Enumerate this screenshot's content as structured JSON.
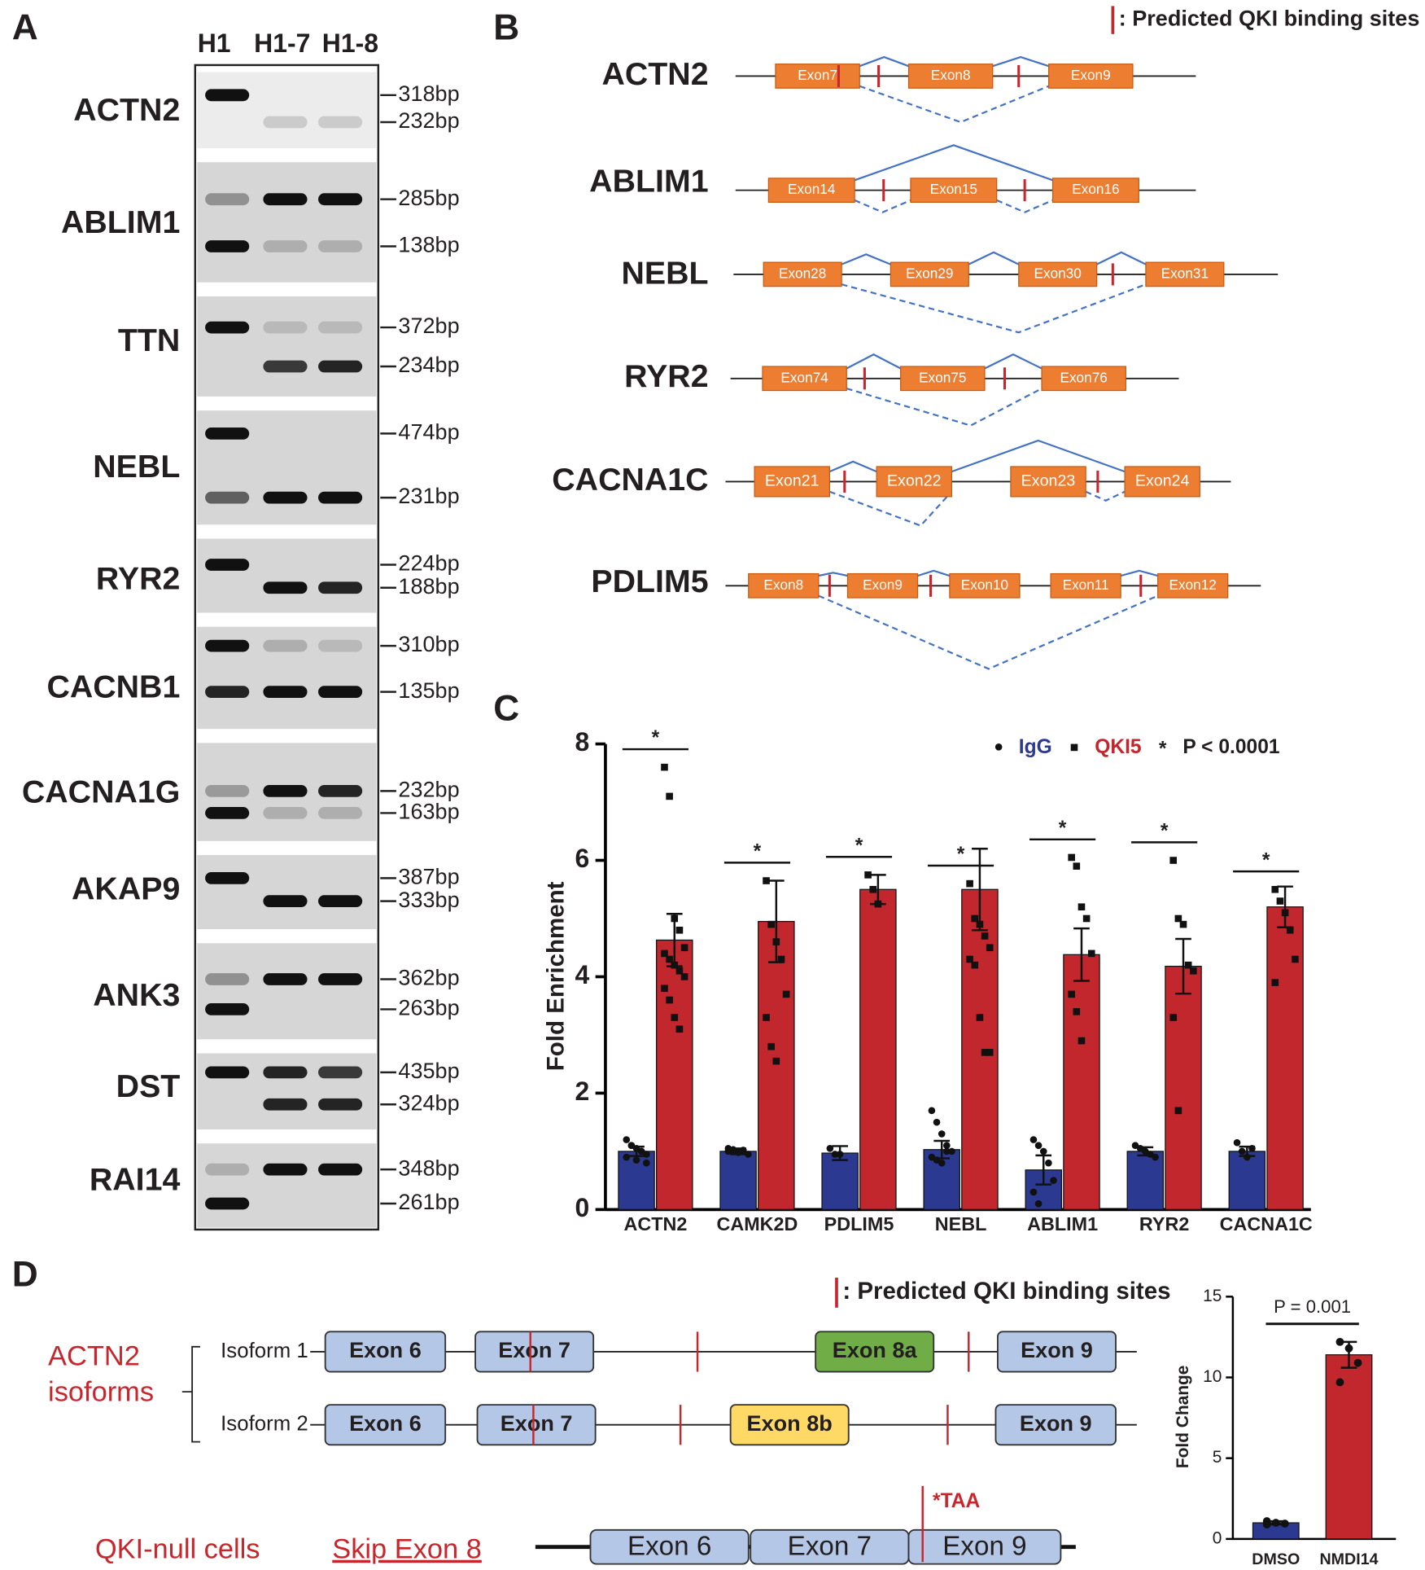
{
  "panel_labels": [
    "A",
    "B",
    "C",
    "D"
  ],
  "gel": {
    "lanes": [
      "H1",
      "H1-7",
      "H1-8"
    ],
    "rows": [
      {
        "gene": "ACTN2",
        "sizes": [
          "318bp",
          "232bp"
        ]
      },
      {
        "gene": "ABLIM1",
        "sizes": [
          "285bp",
          "138bp"
        ]
      },
      {
        "gene": "TTN",
        "sizes": [
          "372bp",
          "234bp"
        ]
      },
      {
        "gene": "NEBL",
        "sizes": [
          "474bp",
          "231bp"
        ]
      },
      {
        "gene": "RYR2",
        "sizes": [
          "224bp",
          "188bp"
        ]
      },
      {
        "gene": "CACNB1",
        "sizes": [
          "310bp",
          "135bp"
        ]
      },
      {
        "gene": "CACNA1G",
        "sizes": [
          "232bp",
          "163bp"
        ]
      },
      {
        "gene": "AKAP9",
        "sizes": [
          "387bp",
          "333bp"
        ]
      },
      {
        "gene": "ANK3",
        "sizes": [
          "362bp",
          "263bp"
        ]
      },
      {
        "gene": "DST",
        "sizes": [
          "435bp",
          "324bp"
        ]
      },
      {
        "gene": "RAI14",
        "sizes": [
          "348bp",
          "261bp"
        ]
      }
    ]
  },
  "splicing": {
    "legend": ": Predicted QKI binding sites",
    "genes": [
      {
        "name": "ACTN2",
        "exons": [
          "Exon7",
          "Exon8",
          "Exon9"
        ]
      },
      {
        "name": "ABLIM1",
        "exons": [
          "Exon14",
          "Exon15",
          "Exon16"
        ]
      },
      {
        "name": "NEBL",
        "exons": [
          "Exon28",
          "Exon29",
          "Exon30",
          "Exon31"
        ]
      },
      {
        "name": "RYR2",
        "exons": [
          "Exon74",
          "Exon75",
          "Exon76"
        ]
      },
      {
        "name": "CACNA1C",
        "exons": [
          "Exon21",
          "Exon22",
          "Exon23",
          "Exon24"
        ]
      },
      {
        "name": "PDLIM5",
        "exons": [
          "Exon8",
          "Exon9",
          "Exon10",
          "Exon11",
          "Exon12"
        ]
      }
    ]
  },
  "chart_data": [
    {
      "type": "bar",
      "ylabel": "Fold Enrichment",
      "categories": [
        "ACTN2",
        "CAMK2D",
        "PDLIM5",
        "NEBL",
        "ABLIM1",
        "RYR2",
        "CACNA1C"
      ],
      "ylim": [
        0,
        8
      ],
      "yticks": [
        0,
        2,
        4,
        6,
        8
      ],
      "significance": "*",
      "significance_note": "P < 0.0001",
      "series": [
        {
          "name": "IgG",
          "color": "#2b3990",
          "values": [
            1.0,
            1.0,
            0.97,
            1.03,
            0.68,
            1.0,
            1.0
          ],
          "errors": [
            0.08,
            0.05,
            0.12,
            0.15,
            0.25,
            0.07,
            0.08
          ],
          "points": [
            [
              1.2,
              1.1,
              1.05,
              1.0,
              0.95,
              0.9,
              1.1,
              0.85,
              1.0,
              0.8
            ],
            [
              1.05,
              1.0,
              0.98,
              1.02,
              0.95,
              1.0,
              1.03
            ],
            [
              1.05,
              0.95,
              0.95
            ],
            [
              1.7,
              1.5,
              1.3,
              1.1,
              1.0,
              0.9,
              0.85,
              0.8,
              1.0
            ],
            [
              1.2,
              1.1,
              1.0,
              0.8,
              0.5,
              0.3,
              0.1
            ],
            [
              1.1,
              1.05,
              1.0,
              0.95,
              0.9
            ],
            [
              1.15,
              1.0,
              0.9,
              1.05
            ]
          ]
        },
        {
          "name": "QKI5",
          "color": "#c1272d",
          "values": [
            4.63,
            4.95,
            5.5,
            5.5,
            4.38,
            4.18,
            5.2
          ],
          "errors": [
            0.45,
            0.7,
            0.25,
            0.7,
            0.45,
            0.47,
            0.35
          ],
          "points": [
            [
              7.6,
              7.1,
              5.0,
              4.8,
              4.5,
              4.4,
              4.3,
              4.2,
              4.1,
              4.0,
              3.8,
              3.6,
              3.3,
              3.1
            ],
            [
              5.65,
              4.9,
              4.6,
              4.3,
              3.7,
              3.3,
              2.8,
              2.55
            ],
            [
              5.75,
              5.5,
              5.25
            ],
            [
              5.6,
              5.0,
              4.9,
              4.7,
              4.5,
              4.3,
              4.2,
              3.3,
              2.7,
              2.7
            ],
            [
              6.05,
              5.9,
              5.2,
              5.0,
              4.4,
              3.7,
              3.4,
              2.9
            ],
            [
              6.0,
              5.0,
              4.9,
              4.2,
              4.1,
              3.3,
              1.7
            ],
            [
              5.5,
              5.3,
              5.1,
              4.8,
              4.3,
              3.9
            ]
          ]
        }
      ]
    },
    {
      "type": "bar",
      "ylabel": "Fold Change",
      "categories": [
        "DMSO",
        "NMDI14"
      ],
      "values": [
        1.0,
        11.4
      ],
      "errors": [
        0.1,
        0.8
      ],
      "colors": [
        "#2b3990",
        "#c1272d"
      ],
      "ylim": [
        0,
        15
      ],
      "yticks": [
        0,
        5,
        10,
        15
      ],
      "annotation": "P = 0.001",
      "points": [
        [
          1.1,
          1.0,
          0.95,
          0.9
        ],
        [
          12.2,
          11.8,
          10.9,
          9.7
        ]
      ]
    }
  ],
  "isoforms": {
    "title_lines": [
      "ACTN2",
      "isoforms"
    ],
    "legend": ": Predicted QKI binding sites",
    "rows": [
      {
        "name": "Isoform 1",
        "exons": [
          "Exon 6",
          "Exon 7",
          "Exon 8a",
          "Exon 9"
        ]
      },
      {
        "name": "Isoform 2",
        "exons": [
          "Exon 6",
          "Exon 7",
          "Exon 8b",
          "Exon 9"
        ]
      }
    ],
    "null_label": "QKI-null cells",
    "event": "Skip Exon 8",
    "result_exons": [
      "Exon 6",
      "Exon 7",
      "Exon 9"
    ],
    "stop": "*TAA"
  }
}
